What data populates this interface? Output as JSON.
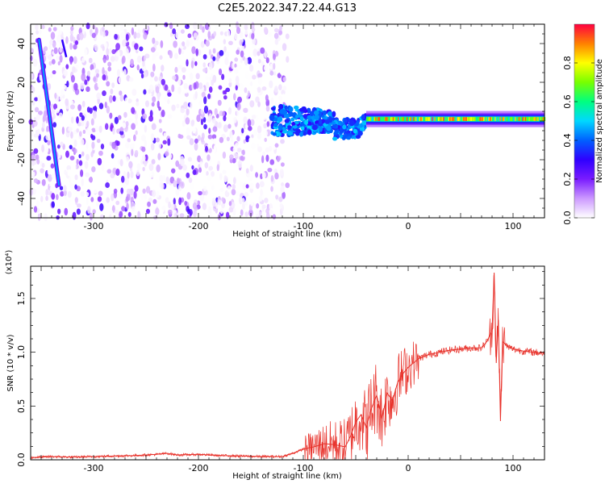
{
  "figure_title": "C2E5.2022.347.22.44.G13",
  "colorbar": {
    "label": "Normalized spectral amplitude",
    "ticks": [
      "0.0",
      "0.2",
      "0.4",
      "0.6",
      "0.8"
    ],
    "tick_values": [
      0.0,
      0.2,
      0.4,
      0.6,
      0.8
    ],
    "range": [
      0,
      1
    ],
    "colormap": [
      "#ffffff",
      "#cc99ff",
      "#7a1cff",
      "#2f00ff",
      "#0060ff",
      "#00d8ff",
      "#00ff80",
      "#78ff00",
      "#ffff00",
      "#ff8000",
      "#ff0040"
    ]
  },
  "chart_data": [
    {
      "type": "heatmap",
      "title": "",
      "xlabel": "Height of straight line (km)",
      "ylabel": "Frequency (Hz)",
      "xlim": [
        -360,
        130
      ],
      "ylim": [
        -50,
        50
      ],
      "xticks": [
        -300,
        -200,
        -100,
        0,
        100
      ],
      "xtick_labels": [
        "-300",
        "-200",
        "-100",
        "0",
        "100"
      ],
      "yticks": [
        -40,
        -20,
        0,
        20,
        40
      ],
      "ytick_labels": [
        "-40",
        "-20",
        "0",
        "20",
        "40"
      ],
      "features": [
        {
          "name": "diffuse noise",
          "x_range": [
            -360,
            -115
          ],
          "y_range": [
            -50,
            50
          ],
          "amplitude": [
            0.0,
            0.3
          ]
        },
        {
          "name": "converging band",
          "x_range": [
            -130,
            -40
          ],
          "y_range": [
            -8,
            8
          ],
          "amplitude": [
            0.3,
            0.5
          ]
        },
        {
          "name": "stable carrier",
          "x_range": [
            -40,
            130
          ],
          "y": 1,
          "amplitude": [
            0.5,
            1.0
          ]
        },
        {
          "name": "diagonal trace",
          "x": [
            -352,
            -333
          ],
          "y": [
            42,
            -33
          ],
          "amplitude": [
            0.3,
            0.5
          ]
        }
      ]
    },
    {
      "type": "line",
      "title": "",
      "xlabel": "Height of straight line (km)",
      "ylabel": "SNR (10 * v/v)",
      "y_multiplier": "(x10⁴)",
      "xlim": [
        -360,
        130
      ],
      "ylim": [
        0,
        1.8
      ],
      "xticks": [
        -300,
        -200,
        -100,
        0,
        100
      ],
      "xtick_labels": [
        "-300",
        "-200",
        "-100",
        "0",
        "100"
      ],
      "yticks": [
        0.0,
        0.5,
        1.0,
        1.5
      ],
      "ytick_labels": [
        "0.0",
        "0.5",
        "1.0",
        "1.5"
      ],
      "color": "#e8312a",
      "x": [
        -360,
        -340,
        -320,
        -300,
        -280,
        -260,
        -240,
        -230,
        -220,
        -200,
        -180,
        -160,
        -140,
        -120,
        -110,
        -100,
        -90,
        -80,
        -70,
        -60,
        -55,
        -50,
        -45,
        -40,
        -35,
        -30,
        -25,
        -20,
        -15,
        -10,
        -5,
        0,
        5,
        10,
        20,
        30,
        40,
        50,
        60,
        70,
        75,
        80,
        82,
        84,
        86,
        88,
        90,
        95,
        100,
        110,
        120,
        130
      ],
      "y": [
        0.02,
        0.03,
        0.025,
        0.03,
        0.035,
        0.04,
        0.05,
        0.06,
        0.045,
        0.05,
        0.04,
        0.035,
        0.03,
        0.03,
        0.06,
        0.1,
        0.12,
        0.15,
        0.14,
        0.12,
        0.22,
        0.35,
        0.42,
        0.3,
        0.48,
        0.6,
        0.38,
        0.62,
        0.55,
        0.72,
        0.8,
        0.86,
        0.9,
        0.94,
        0.98,
        1.0,
        1.02,
        1.03,
        1.04,
        1.04,
        1.1,
        1.2,
        1.74,
        0.9,
        1.3,
        0.36,
        1.1,
        1.05,
        1.03,
        1.01,
        1.0,
        0.99
      ]
    }
  ]
}
